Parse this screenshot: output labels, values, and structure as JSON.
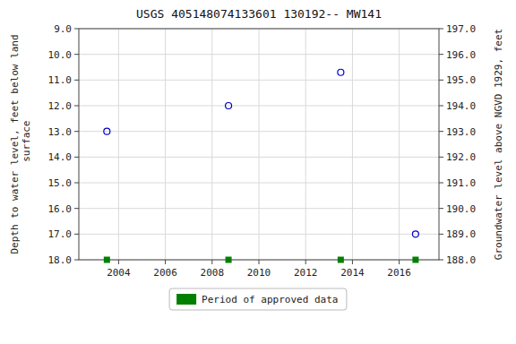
{
  "chart_data": {
    "type": "scatter",
    "title": "USGS 405148074133601 130192-- MW141",
    "y_label": "Depth to water level, feet below land\n surface",
    "y2_label": "Groundwater level above NGVD 1929, feet",
    "xlim": [
      2002.3,
      2017.7
    ],
    "xticks": [
      2004,
      2006,
      2008,
      2010,
      2012,
      2014,
      2016
    ],
    "ylim": [
      18,
      9
    ],
    "yticks": [
      {
        "value": 9,
        "label": "9.0"
      },
      {
        "value": 10,
        "label": "10.0"
      },
      {
        "value": 11,
        "label": "11.0"
      },
      {
        "value": 12,
        "label": "12.0"
      },
      {
        "value": 13,
        "label": "13.0"
      },
      {
        "value": 14,
        "label": "14.0"
      },
      {
        "value": 15,
        "label": "15.0"
      },
      {
        "value": 16,
        "label": "16.0"
      },
      {
        "value": 17,
        "label": "17.0"
      },
      {
        "value": 18,
        "label": "18.0"
      }
    ],
    "y2lim": [
      188,
      197
    ],
    "y2ticks": [
      {
        "value": 197,
        "label": "197.0"
      },
      {
        "value": 196,
        "label": "196.0"
      },
      {
        "value": 195,
        "label": "195.0"
      },
      {
        "value": 194,
        "label": "194.0"
      },
      {
        "value": 193,
        "label": "193.0"
      },
      {
        "value": 192,
        "label": "192.0"
      },
      {
        "value": 191,
        "label": "191.0"
      },
      {
        "value": 190,
        "label": "190.0"
      },
      {
        "value": 189,
        "label": "189.0"
      },
      {
        "value": 188,
        "label": "188.0"
      }
    ],
    "grid": true,
    "legend": "bottom",
    "series": [
      {
        "x": [
          2003.5,
          2008.7,
          2013.5,
          2016.7
        ],
        "values": [
          13.0,
          12.0,
          10.7,
          17.0
        ],
        "color": "#0000cc",
        "marker": "circle"
      },
      {
        "name": "Period of approved data",
        "x": [
          2003.5,
          2008.7,
          2013.5,
          2016.7
        ],
        "values": [
          18,
          18,
          18,
          18
        ],
        "color": "#008000",
        "marker": "square"
      }
    ]
  }
}
